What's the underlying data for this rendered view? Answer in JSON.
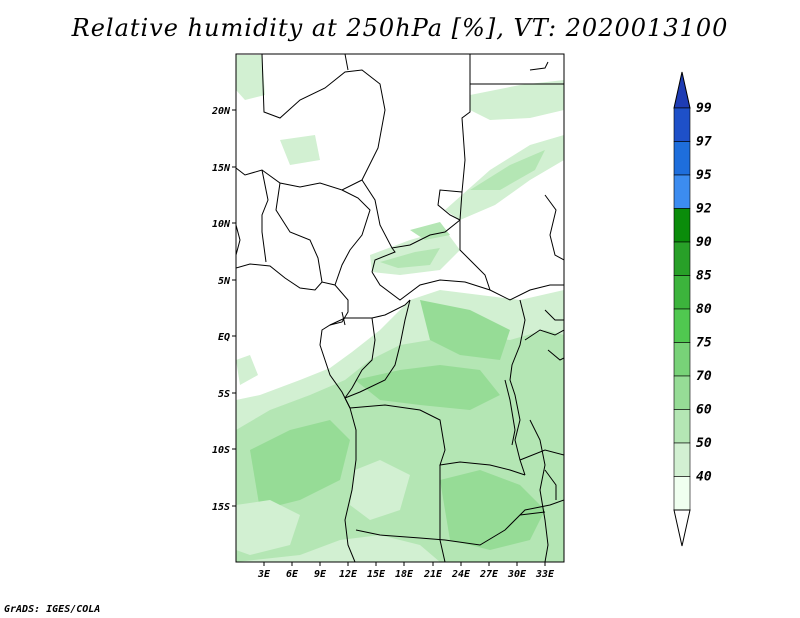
{
  "title": "Relative humidity at 250hPa [%], VT: 2020013100",
  "credit": "GrADS: IGES/COLA",
  "map": {
    "variable": "Relative humidity",
    "level": "250hPa",
    "units": "%",
    "valid_time": "2020013100",
    "lon_range": [
      0,
      35
    ],
    "lat_range": [
      -20,
      25
    ],
    "lat_ticks": [
      "20N",
      "15N",
      "10N",
      "5N",
      "EQ",
      "5S",
      "10S",
      "15S"
    ],
    "lon_ticks": [
      "3E",
      "6E",
      "9E",
      "12E",
      "15E",
      "18E",
      "21E",
      "24E",
      "27E",
      "30E",
      "33E"
    ]
  },
  "colorbar": {
    "labels": [
      "99",
      "97",
      "95",
      "92",
      "90",
      "85",
      "80",
      "75",
      "70",
      "60",
      "50",
      "40"
    ],
    "colors": [
      "#1e50c8",
      "#1e6edc",
      "#3c8cf0",
      "#0a8c0a",
      "#28a028",
      "#3cb43c",
      "#50c850",
      "#78d278",
      "#96dc96",
      "#b4e6b4",
      "#d2f0d2",
      "#f0fff0"
    ],
    "above_color": "#1e3cb4",
    "below_color": "#ffffff"
  }
}
